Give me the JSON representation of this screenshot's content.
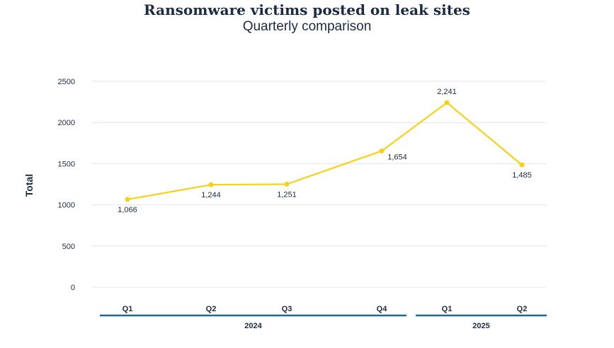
{
  "chart_data": {
    "type": "line",
    "title": "Ransomware victims posted on leak sites",
    "subtitle": "Quarterly comparison",
    "ylabel": "Total",
    "xlabel": "",
    "ylim": [
      0,
      2500
    ],
    "yticks": [
      0,
      500,
      1000,
      1500,
      2000,
      2500
    ],
    "grid": true,
    "categories": [
      "Q1",
      "Q2",
      "Q3",
      "Q4",
      "Q1",
      "Q2"
    ],
    "groups": [
      {
        "label": "2024",
        "count": 4
      },
      {
        "label": "2025",
        "count": 2
      }
    ],
    "values": [
      1066,
      1244,
      1251,
      1654,
      2241,
      1485
    ],
    "data_labels": [
      "1,066",
      "1,244",
      "1,251",
      "1,654",
      "2,241",
      "1,485"
    ],
    "colors": {
      "line": "#f7d117",
      "text": "#1b2a47",
      "group_line": "#1b6a8f",
      "grid": "#e4e4e4"
    }
  }
}
